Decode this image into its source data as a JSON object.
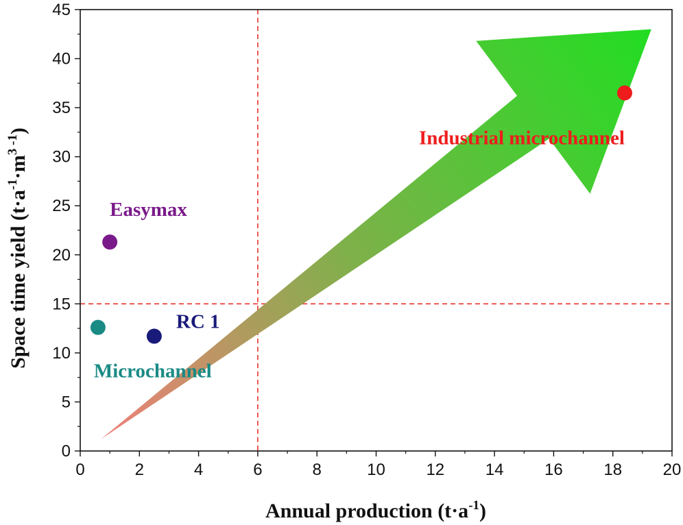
{
  "chart_data": {
    "type": "scatter",
    "xlabel": "Annual production (t·a",
    "xlabel_sup": "-1",
    "xlabel_end": ")",
    "ylabel": "Space time yield (t·a",
    "ylabel_sup1": "-1",
    "ylabel_mid": "·m",
    "ylabel_sup2": "3 -1",
    "ylabel_end": ")",
    "xlim": [
      0,
      20
    ],
    "ylim": [
      0,
      45
    ],
    "xticks": [
      0,
      2,
      4,
      6,
      8,
      10,
      12,
      14,
      16,
      18,
      20
    ],
    "yticks": [
      0,
      5,
      10,
      15,
      20,
      25,
      30,
      35,
      40,
      45
    ],
    "reference_lines": {
      "x": 6,
      "y": 15,
      "color": "#e8302a"
    },
    "points": [
      {
        "name": "Microchannel",
        "x": 0.6,
        "y": 12.6,
        "color": "#1a8a85"
      },
      {
        "name": "Easymax",
        "x": 1.0,
        "y": 21.3,
        "color": "#7a1a8a"
      },
      {
        "name": "RC 1",
        "x": 2.5,
        "y": 11.7,
        "color": "#1a1a7a"
      },
      {
        "name": "Industrial microchannel",
        "x": 18.4,
        "y": 36.5,
        "color": "#ee1c1c"
      }
    ],
    "arrow": {
      "tail": [
        0.7,
        1.2
      ],
      "tip": [
        19.3,
        43.0
      ],
      "color_start": "#f07f7a",
      "color_end": "#22dd22"
    }
  }
}
